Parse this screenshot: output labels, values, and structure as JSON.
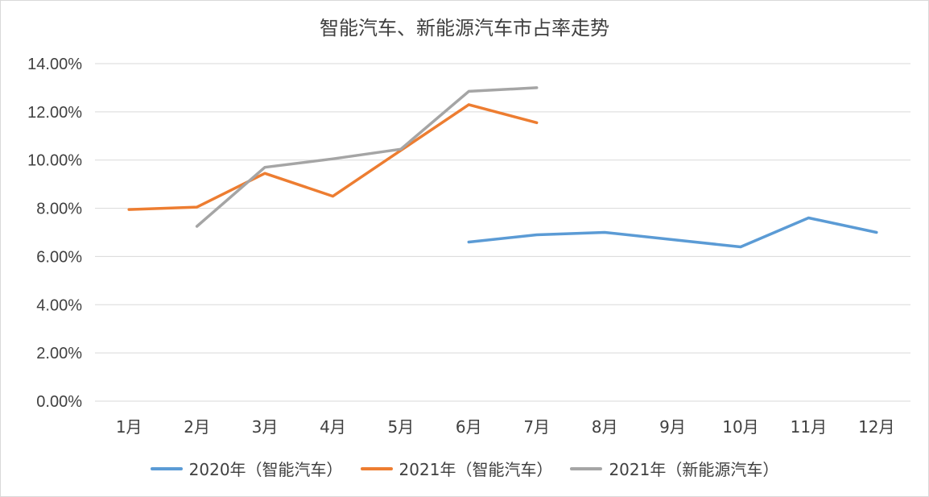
{
  "chart_data": {
    "type": "line",
    "title": "智能汽车、新能源汽车市占率走势",
    "categories": [
      "1月",
      "2月",
      "3月",
      "4月",
      "5月",
      "6月",
      "7月",
      "8月",
      "9月",
      "10月",
      "11月",
      "12月"
    ],
    "y_ticks": [
      "0.00%",
      "2.00%",
      "4.00%",
      "6.00%",
      "8.00%",
      "10.00%",
      "12.00%",
      "14.00%"
    ],
    "ylim": [
      0,
      14
    ],
    "y_unit": "%",
    "grid": true,
    "legend_position": "bottom",
    "series": [
      {
        "name": "2020年（智能汽车）",
        "color": "#5B9BD5",
        "values": [
          null,
          null,
          null,
          null,
          null,
          6.6,
          6.9,
          7.0,
          6.7,
          6.4,
          7.6,
          7.0
        ]
      },
      {
        "name": "2021年（智能汽车）",
        "color": "#ED7D31",
        "values": [
          7.95,
          8.05,
          9.45,
          8.5,
          10.4,
          12.3,
          11.55,
          null,
          null,
          null,
          null,
          null
        ]
      },
      {
        "name": "2021年（新能源汽车）",
        "color": "#A5A5A5",
        "values": [
          null,
          7.25,
          9.7,
          10.05,
          10.45,
          12.85,
          13.0,
          null,
          null,
          null,
          null,
          null
        ]
      }
    ]
  }
}
